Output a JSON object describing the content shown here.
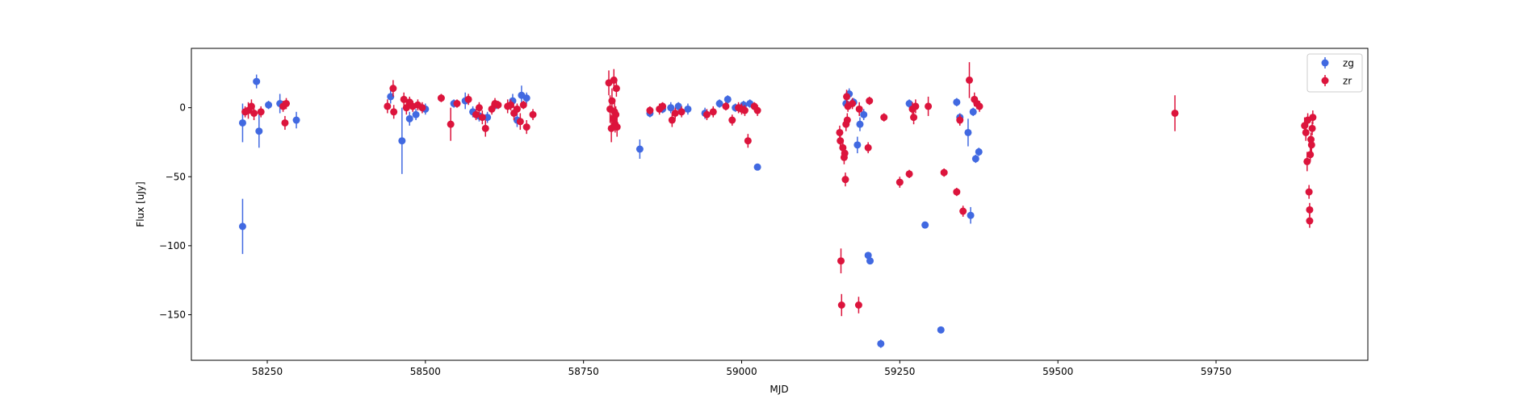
{
  "chart_data": {
    "type": "scatter",
    "title": "",
    "xlabel": "MJD",
    "ylabel": "Flux [uJy]",
    "xlim": [
      58130,
      59990
    ],
    "ylim": [
      -183,
      43
    ],
    "xticks": [
      58250,
      58500,
      58750,
      59000,
      59250,
      59500,
      59750
    ],
    "yticks": [
      -150,
      -100,
      -50,
      0
    ],
    "grid": false,
    "legend_position": "top-right",
    "colors": {
      "zg": "#4169e1",
      "zr": "#dc143c"
    },
    "series": [
      {
        "name": "zg",
        "color": "#4169e1",
        "points": [
          {
            "x": 58211,
            "y": -11,
            "err": 14
          },
          {
            "x": 58211,
            "y": -86,
            "err": 20
          },
          {
            "x": 58233,
            "y": 19,
            "err": 5
          },
          {
            "x": 58237,
            "y": -17,
            "err": 12
          },
          {
            "x": 58252,
            "y": 2,
            "err": 3
          },
          {
            "x": 58270,
            "y": 3,
            "err": 7
          },
          {
            "x": 58296,
            "y": -9,
            "err": 6
          },
          {
            "x": 58445,
            "y": 8,
            "err": 5
          },
          {
            "x": 58463,
            "y": -24,
            "err": 24
          },
          {
            "x": 58475,
            "y": -8,
            "err": 5
          },
          {
            "x": 58485,
            "y": -5,
            "err": 4
          },
          {
            "x": 58500,
            "y": -1,
            "err": 4
          },
          {
            "x": 58545,
            "y": 3,
            "err": 3
          },
          {
            "x": 58563,
            "y": 5,
            "err": 6
          },
          {
            "x": 58575,
            "y": -3,
            "err": 4
          },
          {
            "x": 58585,
            "y": -6,
            "err": 4
          },
          {
            "x": 58598,
            "y": -7,
            "err": 4
          },
          {
            "x": 58612,
            "y": 2,
            "err": 3
          },
          {
            "x": 58638,
            "y": 5,
            "err": 5
          },
          {
            "x": 58645,
            "y": -9,
            "err": 5
          },
          {
            "x": 58652,
            "y": 9,
            "err": 7
          },
          {
            "x": 58660,
            "y": 7,
            "err": 4
          },
          {
            "x": 58839,
            "y": -30,
            "err": 7
          },
          {
            "x": 58855,
            "y": -4,
            "err": 3
          },
          {
            "x": 58875,
            "y": -1,
            "err": 3
          },
          {
            "x": 58888,
            "y": 0,
            "err": 4
          },
          {
            "x": 58900,
            "y": 1,
            "err": 3
          },
          {
            "x": 58915,
            "y": -1,
            "err": 4
          },
          {
            "x": 58942,
            "y": -4,
            "err": 4
          },
          {
            "x": 58965,
            "y": 3,
            "err": 3
          },
          {
            "x": 58978,
            "y": 6,
            "err": 3
          },
          {
            "x": 58990,
            "y": 0,
            "err": 3
          },
          {
            "x": 59003,
            "y": 2,
            "err": 3
          },
          {
            "x": 59013,
            "y": 3,
            "err": 3
          },
          {
            "x": 59025,
            "y": -43,
            "err": 2
          },
          {
            "x": 59165,
            "y": 3,
            "err": 4
          },
          {
            "x": 59170,
            "y": 10,
            "err": 4
          },
          {
            "x": 59177,
            "y": 4,
            "err": 3
          },
          {
            "x": 59183,
            "y": -27,
            "err": 6
          },
          {
            "x": 59187,
            "y": -12,
            "err": 5
          },
          {
            "x": 59193,
            "y": -5,
            "err": 4
          },
          {
            "x": 59200,
            "y": -107,
            "err": 2
          },
          {
            "x": 59203,
            "y": -111,
            "err": 2
          },
          {
            "x": 59220,
            "y": -171,
            "err": 3
          },
          {
            "x": 59265,
            "y": 3,
            "err": 3
          },
          {
            "x": 59290,
            "y": -85,
            "err": 2
          },
          {
            "x": 59315,
            "y": -161,
            "err": 2
          },
          {
            "x": 59340,
            "y": 4,
            "err": 3
          },
          {
            "x": 59345,
            "y": -7,
            "err": 3
          },
          {
            "x": 59358,
            "y": -18,
            "err": 10
          },
          {
            "x": 59362,
            "y": -78,
            "err": 6
          },
          {
            "x": 59366,
            "y": -3,
            "err": 3
          },
          {
            "x": 59370,
            "y": -37,
            "err": 3
          },
          {
            "x": 59375,
            "y": -32,
            "err": 3
          }
        ]
      },
      {
        "name": "zr",
        "color": "#dc143c",
        "points": [
          {
            "x": 58215,
            "y": -3,
            "err": 4
          },
          {
            "x": 58220,
            "y": -2,
            "err": 6
          },
          {
            "x": 58225,
            "y": 1,
            "err": 5
          },
          {
            "x": 58229,
            "y": -4,
            "err": 5
          },
          {
            "x": 58240,
            "y": -3,
            "err": 4
          },
          {
            "x": 58275,
            "y": 1,
            "err": 4
          },
          {
            "x": 58280,
            "y": 3,
            "err": 4
          },
          {
            "x": 58278,
            "y": -11,
            "err": 5
          },
          {
            "x": 58440,
            "y": 1,
            "err": 5
          },
          {
            "x": 58449,
            "y": 14,
            "err": 6
          },
          {
            "x": 58450,
            "y": -3,
            "err": 5
          },
          {
            "x": 58466,
            "y": 6,
            "err": 5
          },
          {
            "x": 58470,
            "y": 0,
            "err": 5
          },
          {
            "x": 58475,
            "y": 4,
            "err": 4
          },
          {
            "x": 58480,
            "y": 1,
            "err": 4
          },
          {
            "x": 58488,
            "y": 2,
            "err": 4
          },
          {
            "x": 58495,
            "y": 0,
            "err": 4
          },
          {
            "x": 58525,
            "y": 7,
            "err": 3
          },
          {
            "x": 58540,
            "y": -12,
            "err": 12
          },
          {
            "x": 58550,
            "y": 3,
            "err": 3
          },
          {
            "x": 58568,
            "y": 6,
            "err": 4
          },
          {
            "x": 58580,
            "y": -5,
            "err": 4
          },
          {
            "x": 58585,
            "y": 0,
            "err": 4
          },
          {
            "x": 58590,
            "y": -7,
            "err": 5
          },
          {
            "x": 58595,
            "y": -15,
            "err": 6
          },
          {
            "x": 58605,
            "y": -1,
            "err": 4
          },
          {
            "x": 58610,
            "y": 3,
            "err": 4
          },
          {
            "x": 58615,
            "y": 2,
            "err": 3
          },
          {
            "x": 58630,
            "y": 1,
            "err": 5
          },
          {
            "x": 58635,
            "y": 2,
            "err": 4
          },
          {
            "x": 58640,
            "y": -4,
            "err": 5
          },
          {
            "x": 58645,
            "y": -1,
            "err": 4
          },
          {
            "x": 58650,
            "y": -10,
            "err": 6
          },
          {
            "x": 58655,
            "y": 2,
            "err": 3
          },
          {
            "x": 58660,
            "y": -14,
            "err": 5
          },
          {
            "x": 58670,
            "y": -5,
            "err": 4
          },
          {
            "x": 58790,
            "y": 18,
            "err": 9
          },
          {
            "x": 58792,
            "y": -1,
            "err": 10
          },
          {
            "x": 58794,
            "y": -15,
            "err": 10
          },
          {
            "x": 58795,
            "y": 5,
            "err": 9
          },
          {
            "x": 58797,
            "y": -8,
            "err": 8
          },
          {
            "x": 58798,
            "y": 20,
            "err": 8
          },
          {
            "x": 58799,
            "y": -3,
            "err": 7
          },
          {
            "x": 58800,
            "y": -12,
            "err": 6
          },
          {
            "x": 58801,
            "y": -5,
            "err": 6
          },
          {
            "x": 58802,
            "y": 14,
            "err": 6
          },
          {
            "x": 58803,
            "y": -14,
            "err": 7
          },
          {
            "x": 58855,
            "y": -2,
            "err": 3
          },
          {
            "x": 58870,
            "y": -1,
            "err": 4
          },
          {
            "x": 58875,
            "y": 1,
            "err": 3
          },
          {
            "x": 58890,
            "y": -9,
            "err": 5
          },
          {
            "x": 58895,
            "y": -4,
            "err": 4
          },
          {
            "x": 58905,
            "y": -3,
            "err": 4
          },
          {
            "x": 58945,
            "y": -5,
            "err": 4
          },
          {
            "x": 58955,
            "y": -3,
            "err": 4
          },
          {
            "x": 58975,
            "y": 1,
            "err": 3
          },
          {
            "x": 58985,
            "y": -9,
            "err": 4
          },
          {
            "x": 58995,
            "y": 0,
            "err": 4
          },
          {
            "x": 59000,
            "y": -1,
            "err": 4
          },
          {
            "x": 59005,
            "y": -2,
            "err": 4
          },
          {
            "x": 59010,
            "y": -24,
            "err": 5
          },
          {
            "x": 59020,
            "y": 1,
            "err": 3
          },
          {
            "x": 59025,
            "y": -2,
            "err": 4
          },
          {
            "x": 59155,
            "y": -18,
            "err": 5
          },
          {
            "x": 59156,
            "y": -24,
            "err": 5
          },
          {
            "x": 59157,
            "y": -111,
            "err": 9
          },
          {
            "x": 59158,
            "y": -143,
            "err": 8
          },
          {
            "x": 59160,
            "y": -29,
            "err": 5
          },
          {
            "x": 59162,
            "y": -36,
            "err": 5
          },
          {
            "x": 59163,
            "y": -33,
            "err": 5
          },
          {
            "x": 59164,
            "y": -52,
            "err": 5
          },
          {
            "x": 59165,
            "y": -12,
            "err": 5
          },
          {
            "x": 59166,
            "y": 8,
            "err": 5
          },
          {
            "x": 59167,
            "y": -9,
            "err": 5
          },
          {
            "x": 59168,
            "y": 1,
            "err": 4
          },
          {
            "x": 59175,
            "y": 3,
            "err": 4
          },
          {
            "x": 59185,
            "y": -143,
            "err": 6
          },
          {
            "x": 59186,
            "y": -1,
            "err": 5
          },
          {
            "x": 59200,
            "y": -29,
            "err": 4
          },
          {
            "x": 59202,
            "y": 5,
            "err": 3
          },
          {
            "x": 59225,
            "y": -7,
            "err": 3
          },
          {
            "x": 59250,
            "y": -54,
            "err": 4
          },
          {
            "x": 59265,
            "y": -48,
            "err": 3
          },
          {
            "x": 59270,
            "y": -1,
            "err": 5
          },
          {
            "x": 59272,
            "y": -7,
            "err": 5
          },
          {
            "x": 59275,
            "y": 1,
            "err": 5
          },
          {
            "x": 59295,
            "y": 1,
            "err": 7
          },
          {
            "x": 59320,
            "y": -47,
            "err": 3
          },
          {
            "x": 59340,
            "y": -61,
            "err": 3
          },
          {
            "x": 59345,
            "y": -9,
            "err": 4
          },
          {
            "x": 59350,
            "y": -75,
            "err": 4
          },
          {
            "x": 59360,
            "y": 20,
            "err": 13
          },
          {
            "x": 59368,
            "y": 6,
            "err": 5
          },
          {
            "x": 59372,
            "y": 3,
            "err": 4
          },
          {
            "x": 59376,
            "y": 1,
            "err": 4
          },
          {
            "x": 59685,
            "y": -4,
            "err": 13
          },
          {
            "x": 59890,
            "y": -13,
            "err": 6
          },
          {
            "x": 59892,
            "y": -18,
            "err": 6
          },
          {
            "x": 59894,
            "y": -39,
            "err": 7
          },
          {
            "x": 59895,
            "y": -9,
            "err": 5
          },
          {
            "x": 59897,
            "y": -61,
            "err": 5
          },
          {
            "x": 59898,
            "y": -74,
            "err": 5
          },
          {
            "x": 59898,
            "y": -82,
            "err": 5
          },
          {
            "x": 59899,
            "y": -34,
            "err": 5
          },
          {
            "x": 59900,
            "y": -23,
            "err": 5
          },
          {
            "x": 59901,
            "y": -27,
            "err": 5
          },
          {
            "x": 59902,
            "y": -15,
            "err": 5
          },
          {
            "x": 59903,
            "y": -7,
            "err": 5
          }
        ]
      }
    ]
  }
}
